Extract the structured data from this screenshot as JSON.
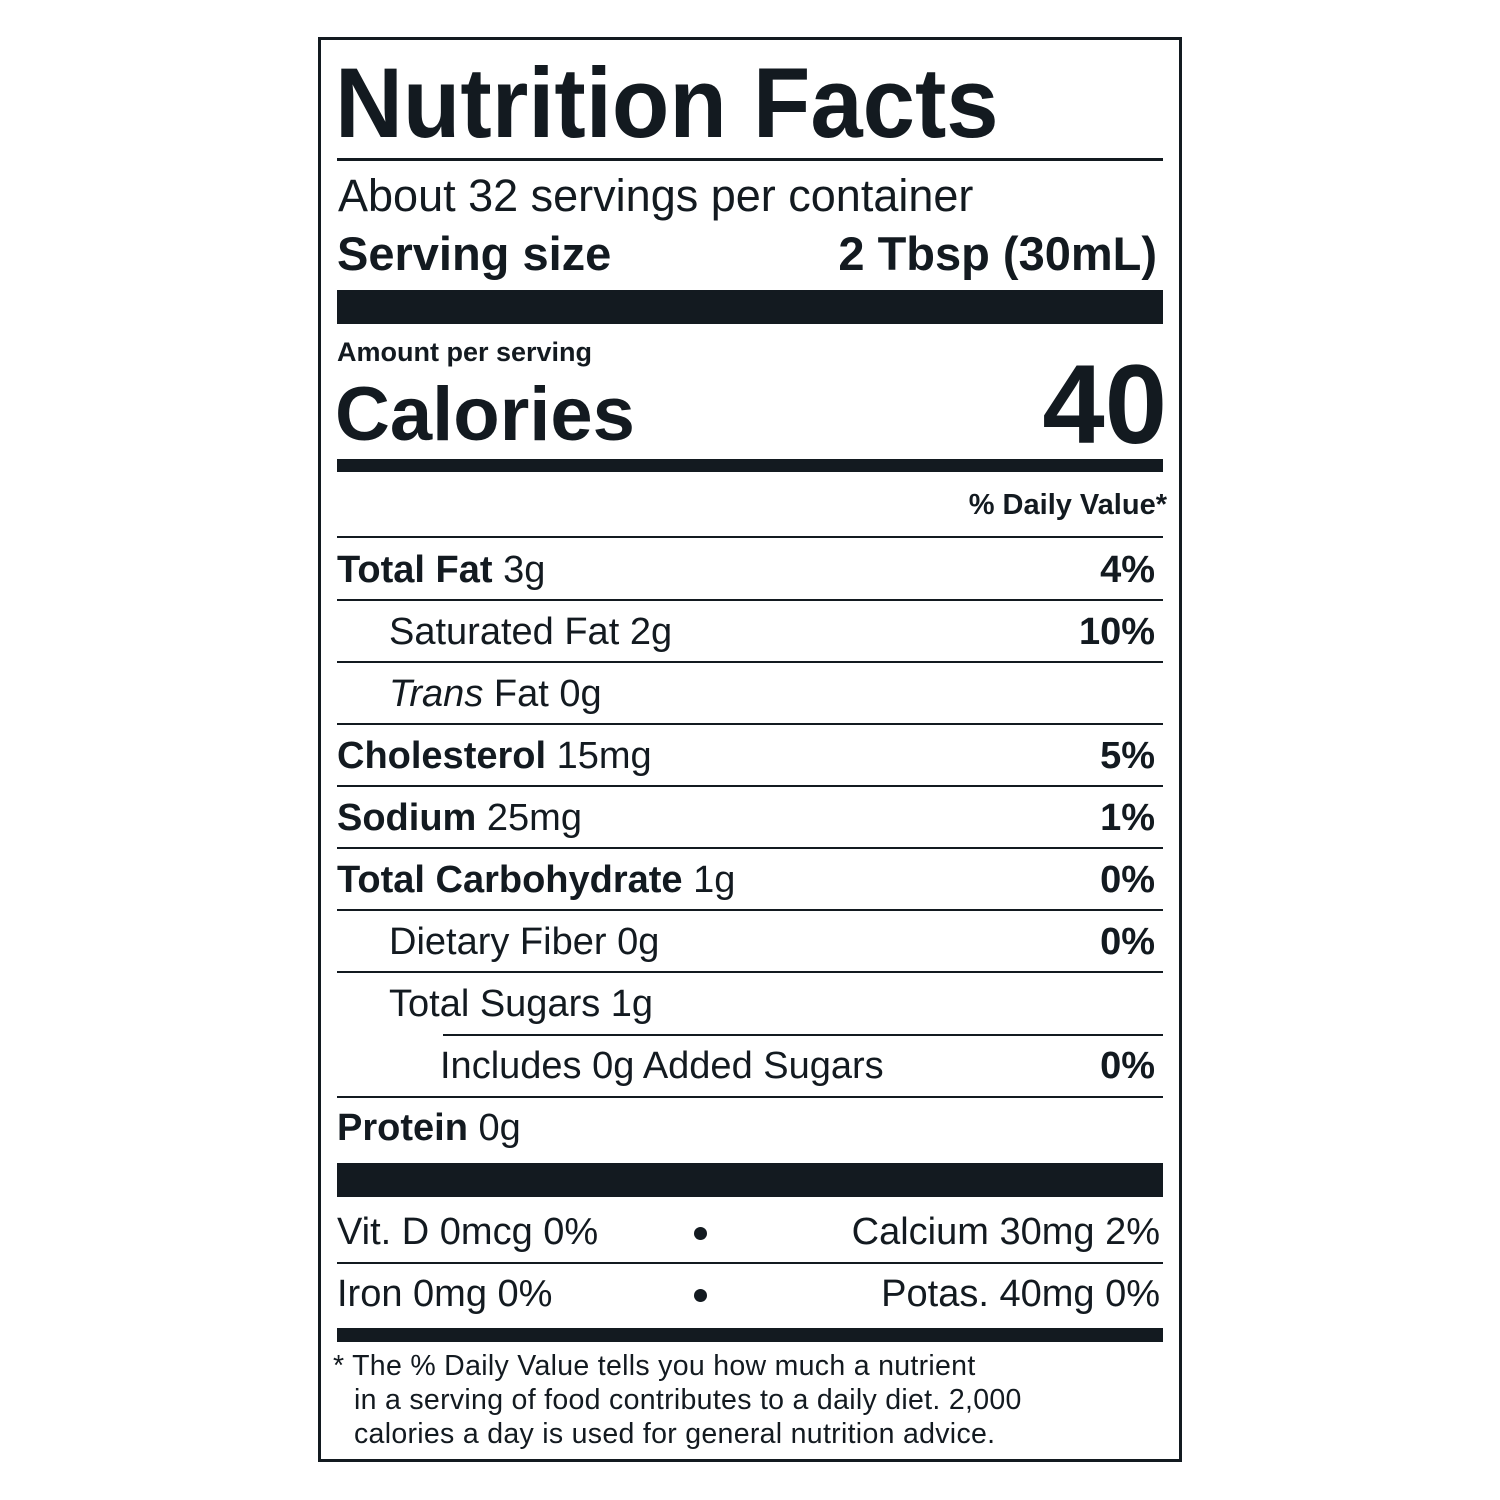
{
  "title": "Nutrition Facts",
  "servings_per_container": "About 32 servings per container",
  "serving_size": {
    "label": "Serving size",
    "value": "2 Tbsp (30mL)"
  },
  "amount_per_serving": "Amount per serving",
  "calories": {
    "label": "Calories",
    "value": "40"
  },
  "daily_value_header": "% Daily Value*",
  "nutrients": [
    {
      "name": "Total Fat",
      "amount": "3g",
      "dv": "4%"
    },
    {
      "name": "Saturated Fat",
      "amount": "2g",
      "dv": "10%"
    },
    {
      "name": "Trans",
      "name_suffix": "Fat",
      "amount": "0g",
      "dv": ""
    },
    {
      "name": "Cholesterol",
      "amount": "15mg",
      "dv": "5%"
    },
    {
      "name": "Sodium",
      "amount": "25mg",
      "dv": "1%"
    },
    {
      "name": "Total Carbohydrate",
      "amount": "1g",
      "dv": "0%"
    },
    {
      "name": "Dietary Fiber",
      "amount": "0g",
      "dv": "0%"
    },
    {
      "name": "Total Sugars",
      "amount": "1g",
      "dv": ""
    },
    {
      "name": "Includes 0g Added Sugars",
      "amount": "",
      "dv": "0%"
    },
    {
      "name": "Protein",
      "amount": "0g",
      "dv": ""
    }
  ],
  "micronutrients": [
    {
      "left": "Vit. D 0mcg 0%",
      "right": "Calcium 30mg 2%"
    },
    {
      "left": "Iron 0mg 0%",
      "right": "Potas. 40mg 0%"
    }
  ],
  "footnote": [
    "* The % Daily Value tells you how much a nutrient",
    "in a serving of food contributes to a daily diet. 2,000",
    "calories a day is used for general nutrition advice."
  ],
  "colors": {
    "ink": "#131a20",
    "background": "#ffffff"
  }
}
